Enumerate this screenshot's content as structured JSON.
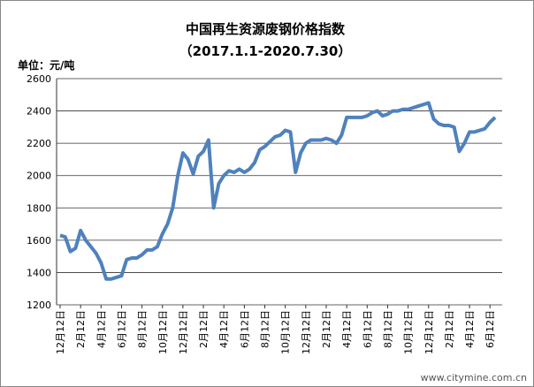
{
  "chart_data": {
    "type": "line",
    "title": "中国再生资源废钢价格指数",
    "subtitle": "（2017.1.1-2020.7.30）",
    "y_label": "单位：元/吨",
    "watermark": "www.citymine.com.cn",
    "categories": [
      "12月12日",
      null,
      null,
      null,
      "2月12日",
      null,
      null,
      null,
      "4月12日",
      null,
      null,
      null,
      "6月12日",
      null,
      null,
      null,
      "8月12日",
      null,
      null,
      null,
      "10月12日",
      null,
      null,
      null,
      "12月12日",
      null,
      null,
      null,
      "2月12日",
      null,
      null,
      null,
      "4月12日",
      null,
      null,
      null,
      "6月12日",
      null,
      null,
      null,
      "8月12日",
      null,
      null,
      null,
      "10月12日",
      null,
      null,
      null,
      "12月12日",
      null,
      null,
      null,
      "2月12日",
      null,
      null,
      null,
      "4月12日",
      null,
      null,
      null,
      "6月12日",
      null,
      null,
      null,
      "8月12日",
      null,
      null,
      null,
      "10月12日",
      null,
      null,
      null,
      "12月12日",
      null,
      null,
      null,
      "2月12日",
      null,
      null,
      null,
      "4月12日",
      null,
      null,
      null,
      "6月12日",
      null
    ],
    "series": [
      {
        "color": "#4f81bd",
        "values": [
          1630,
          1620,
          1530,
          1550,
          1660,
          1600,
          1560,
          1520,
          1460,
          1360,
          1360,
          1370,
          1380,
          1480,
          1490,
          1490,
          1510,
          1540,
          1540,
          1560,
          1640,
          1700,
          1800,
          2000,
          2140,
          2100,
          2010,
          2120,
          2150,
          2220,
          1800,
          1950,
          2000,
          2030,
          2020,
          2040,
          2020,
          2040,
          2080,
          2160,
          2180,
          2210,
          2240,
          2250,
          2280,
          2270,
          2020,
          2140,
          2200,
          2220,
          2220,
          2220,
          2230,
          2220,
          2200,
          2250,
          2360,
          2360,
          2360,
          2360,
          2370,
          2390,
          2400,
          2370,
          2380,
          2400,
          2400,
          2410,
          2410,
          2420,
          2430,
          2440,
          2450,
          2350,
          2320,
          2310,
          2310,
          2300,
          2150,
          2200,
          2270,
          2270,
          2280,
          2290,
          2330,
          2360
        ]
      }
    ],
    "ylim": [
      1200,
      2600
    ],
    "yticks": [
      1200,
      1400,
      1600,
      1800,
      2000,
      2200,
      2400,
      2600
    ],
    "grid": true
  }
}
